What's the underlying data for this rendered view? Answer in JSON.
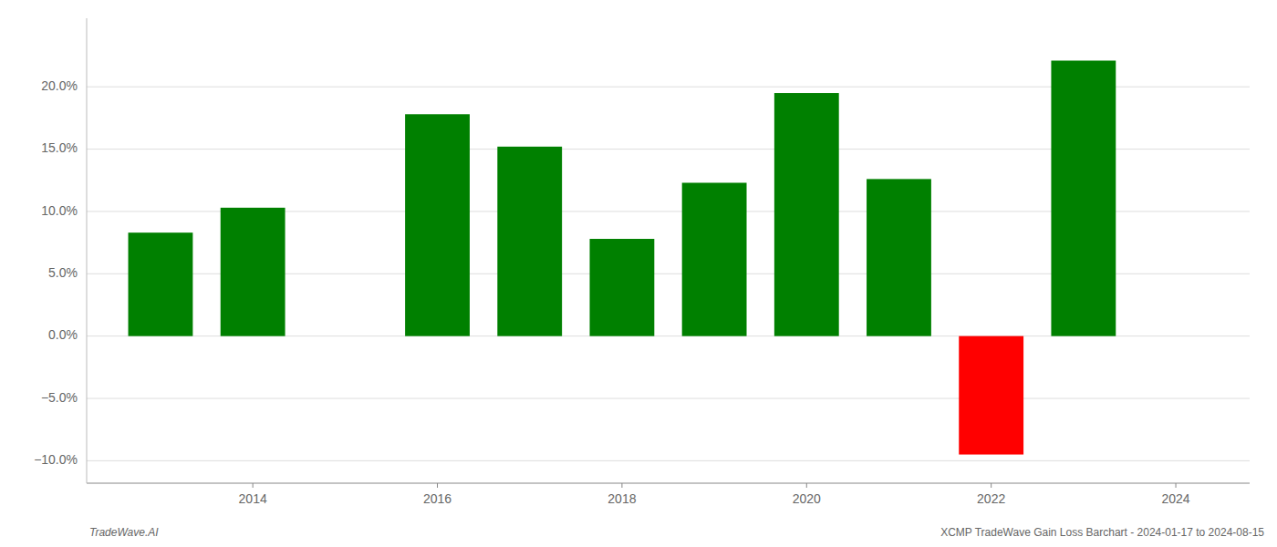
{
  "chart_data": {
    "type": "bar",
    "x": [
      2013,
      2014,
      2016,
      2017,
      2018,
      2019,
      2020,
      2021,
      2022,
      2023
    ],
    "values": [
      0.083,
      0.103,
      0.178,
      0.152,
      0.078,
      0.123,
      0.195,
      0.126,
      -0.095,
      0.221
    ],
    "colors": [
      "#008000",
      "#008000",
      "#008000",
      "#008000",
      "#008000",
      "#008000",
      "#008000",
      "#008000",
      "#ff0000",
      "#008000"
    ],
    "xlim": [
      2012.2,
      2024.8
    ],
    "xticks": [
      2014,
      2016,
      2018,
      2020,
      2022,
      2024
    ],
    "ylim": [
      -0.118,
      0.255
    ],
    "yticks": [
      {
        "value": -0.1,
        "label": "−10.0%"
      },
      {
        "value": -0.05,
        "label": "−5.0%"
      },
      {
        "value": 0.0,
        "label": "0.0%"
      },
      {
        "value": 0.05,
        "label": "5.0%"
      },
      {
        "value": 0.1,
        "label": "10.0%"
      },
      {
        "value": 0.15,
        "label": "15.0%"
      },
      {
        "value": 0.2,
        "label": "20.0%"
      }
    ],
    "grid": true,
    "annotations": [
      "TradeWave.AI",
      "XCMP TradeWave Gain Loss Barchart - 2024-01-17 to 2024-08-15"
    ]
  }
}
